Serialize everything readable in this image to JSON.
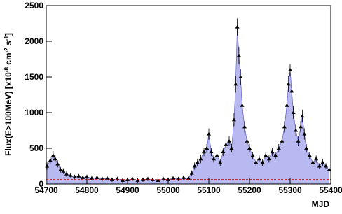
{
  "chart_data": {
    "type": "line",
    "x_label": "MJD",
    "y_label": [
      "Flux(E>100MeV) [x10",
      "-8",
      " cm",
      "-2",
      " s",
      "-1",
      "]"
    ],
    "xlim": [
      54700,
      55400
    ],
    "xticks": [
      54700,
      54800,
      54900,
      55000,
      55100,
      55200,
      55300,
      55400
    ],
    "ylim": [
      0,
      2500
    ],
    "yticks": [
      0,
      500,
      1000,
      1500,
      2000,
      2500
    ],
    "fill_color": "#b9b9f2",
    "reference_line": {
      "value": 60,
      "color": "#cc0000"
    },
    "series": [
      {
        "color": "#000000",
        "x": [
          54702,
          54710,
          54717,
          54722,
          54728,
          54735,
          54742,
          54750,
          54760,
          54770,
          54780,
          54790,
          54800,
          54812,
          54825,
          54838,
          54850,
          54862,
          54875,
          54888,
          54900,
          54912,
          54925,
          54938,
          54950,
          54962,
          54975,
          54988,
          55000,
          55012,
          55025,
          55038,
          55050,
          55058,
          55065,
          55072,
          55080,
          55088,
          55095,
          55100,
          55106,
          55112,
          55120,
          55128,
          55135,
          55142,
          55150,
          55156,
          55162,
          55166,
          55170,
          55174,
          55178,
          55182,
          55188,
          55194,
          55200,
          55208,
          55216,
          55224,
          55232,
          55240,
          55248,
          55256,
          55264,
          55272,
          55280,
          55286,
          55292,
          55296,
          55300,
          55304,
          55308,
          55314,
          55320,
          55326,
          55330,
          55335,
          55340,
          55348,
          55356,
          55364,
          55372,
          55380,
          55388,
          55396
        ],
        "values": [
          250,
          330,
          400,
          350,
          280,
          200,
          180,
          140,
          120,
          100,
          110,
          90,
          100,
          80,
          90,
          70,
          80,
          60,
          70,
          50,
          60,
          70,
          50,
          60,
          70,
          60,
          50,
          70,
          60,
          80,
          70,
          90,
          80,
          150,
          250,
          300,
          350,
          450,
          500,
          700,
          450,
          350,
          400,
          300,
          450,
          550,
          600,
          500,
          900,
          1400,
          2200,
          1800,
          1500,
          1100,
          800,
          600,
          500,
          400,
          300,
          350,
          300,
          400,
          350,
          450,
          400,
          500,
          600,
          800,
          1100,
          1400,
          1600,
          1300,
          1000,
          750,
          600,
          800,
          950,
          700,
          500,
          400,
          300,
          350,
          250,
          300,
          250,
          200
        ],
        "errors": [
          50,
          50,
          60,
          50,
          50,
          40,
          40,
          40,
          30,
          30,
          30,
          30,
          30,
          30,
          30,
          30,
          30,
          30,
          30,
          30,
          30,
          30,
          30,
          30,
          30,
          30,
          30,
          30,
          30,
          30,
          30,
          30,
          30,
          40,
          50,
          50,
          60,
          60,
          60,
          80,
          60,
          50,
          60,
          50,
          60,
          70,
          70,
          60,
          90,
          120,
          120,
          120,
          110,
          90,
          80,
          70,
          60,
          50,
          50,
          50,
          50,
          50,
          50,
          60,
          50,
          60,
          70,
          80,
          100,
          110,
          80,
          100,
          90,
          80,
          70,
          80,
          90,
          80,
          60,
          50,
          50,
          50,
          40,
          50,
          40,
          40
        ]
      }
    ]
  }
}
